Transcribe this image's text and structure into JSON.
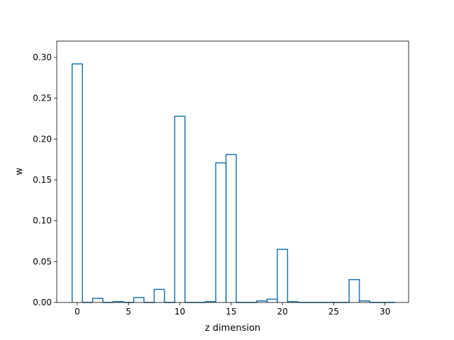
{
  "chart_data": {
    "type": "bar",
    "style": "step-histogram",
    "title": "",
    "xlabel": "z dimension",
    "ylabel": "w",
    "xlim": [
      -2.0,
      32.3
    ],
    "ylim": [
      0.0,
      0.32
    ],
    "xticks": [
      0,
      5,
      10,
      15,
      20,
      25,
      30
    ],
    "xtick_labels": [
      "0",
      "5",
      "10",
      "15",
      "20",
      "25",
      "30"
    ],
    "yticks": [
      0.0,
      0.05,
      0.1,
      0.15,
      0.2,
      0.25,
      0.3
    ],
    "ytick_labels": [
      "0.00",
      "0.05",
      "0.10",
      "0.15",
      "0.20",
      "0.25",
      "0.30"
    ],
    "grid": false,
    "legend": "none",
    "bin_edges": [
      -0.5,
      0.5,
      1.5,
      2.5,
      3.5,
      4.5,
      5.5,
      6.5,
      7.5,
      8.5,
      9.5,
      10.5,
      11.5,
      12.5,
      13.5,
      14.5,
      15.5,
      16.5,
      17.5,
      18.5,
      19.5,
      20.5,
      21.5,
      22.5,
      23.5,
      24.5,
      25.5,
      26.5,
      27.5,
      28.5,
      29.5,
      30.5,
      31.0
    ],
    "categories": [
      "0",
      "1",
      "2",
      "3",
      "4",
      "5",
      "6",
      "7",
      "8",
      "9",
      "10",
      "11",
      "12",
      "13",
      "14",
      "15",
      "16",
      "17",
      "18",
      "19",
      "20",
      "21",
      "22",
      "23",
      "24",
      "25",
      "26",
      "27",
      "28",
      "29",
      "30",
      "31"
    ],
    "values": [
      0.292,
      0.0,
      0.005,
      0.0,
      0.001,
      0.0,
      0.006,
      0.0,
      0.016,
      0.0,
      0.228,
      0.0,
      0.0,
      0.001,
      0.171,
      0.181,
      0.0,
      0.0,
      0.002,
      0.004,
      0.065,
      0.001,
      0.0,
      0.0,
      0.0,
      0.0,
      0.0,
      0.028,
      0.002,
      0.0,
      0.0,
      0.0
    ],
    "colors": {
      "series": "#1f77b4",
      "axes": "#000000",
      "background": "#ffffff"
    }
  }
}
